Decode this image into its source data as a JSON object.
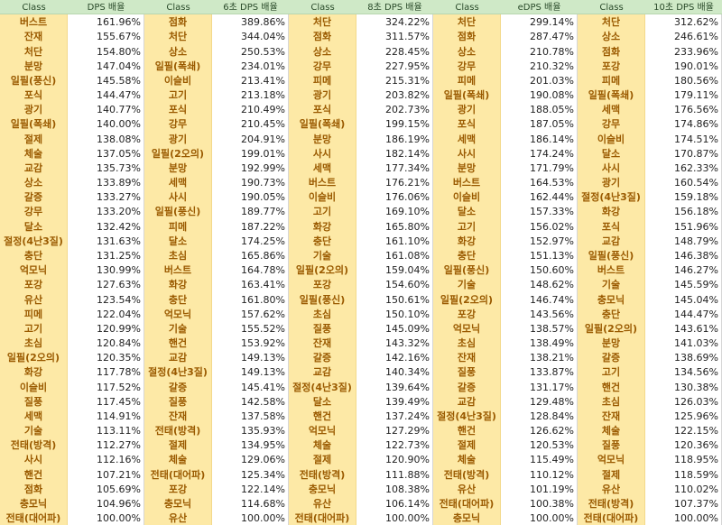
{
  "tables": [
    {
      "class_header": "Class",
      "value_header": "DPS 배율",
      "rows": [
        {
          "cls": "버스트",
          "val": "161.96%"
        },
        {
          "cls": "잔재",
          "val": "155.67%"
        },
        {
          "cls": "처단",
          "val": "154.80%"
        },
        {
          "cls": "분망",
          "val": "147.04%"
        },
        {
          "cls": "일필(풍신)",
          "val": "145.58%"
        },
        {
          "cls": "포식",
          "val": "144.47%"
        },
        {
          "cls": "광기",
          "val": "140.77%"
        },
        {
          "cls": "일필(폭쇄)",
          "val": "140.00%"
        },
        {
          "cls": "절제",
          "val": "138.08%"
        },
        {
          "cls": "체술",
          "val": "137.05%"
        },
        {
          "cls": "교감",
          "val": "135.73%"
        },
        {
          "cls": "상소",
          "val": "133.89%"
        },
        {
          "cls": "갈증",
          "val": "133.27%"
        },
        {
          "cls": "강무",
          "val": "133.20%"
        },
        {
          "cls": "달소",
          "val": "132.42%"
        },
        {
          "cls": "절정(4난3질)",
          "val": "131.63%"
        },
        {
          "cls": "충단",
          "val": "131.25%"
        },
        {
          "cls": "억모닉",
          "val": "130.99%"
        },
        {
          "cls": "포강",
          "val": "127.63%"
        },
        {
          "cls": "유산",
          "val": "123.54%"
        },
        {
          "cls": "피메",
          "val": "122.04%"
        },
        {
          "cls": "고기",
          "val": "120.99%"
        },
        {
          "cls": "초심",
          "val": "120.84%"
        },
        {
          "cls": "일필(2오의)",
          "val": "120.35%"
        },
        {
          "cls": "화강",
          "val": "117.78%"
        },
        {
          "cls": "이슬비",
          "val": "117.52%"
        },
        {
          "cls": "질풍",
          "val": "117.45%"
        },
        {
          "cls": "세맥",
          "val": "114.91%"
        },
        {
          "cls": "기술",
          "val": "113.11%"
        },
        {
          "cls": "전태(방격)",
          "val": "112.27%"
        },
        {
          "cls": "사시",
          "val": "112.16%"
        },
        {
          "cls": "핸건",
          "val": "107.21%"
        },
        {
          "cls": "점화",
          "val": "105.69%"
        },
        {
          "cls": "충모닉",
          "val": "104.96%"
        },
        {
          "cls": "전태(대어파)",
          "val": "100.00%"
        }
      ]
    },
    {
      "class_header": "Class",
      "value_header": "6초 DPS 배율",
      "rows": [
        {
          "cls": "점화",
          "val": "389.86%"
        },
        {
          "cls": "처단",
          "val": "344.04%"
        },
        {
          "cls": "상소",
          "val": "250.53%"
        },
        {
          "cls": "일필(폭쇄)",
          "val": "234.01%"
        },
        {
          "cls": "이슬비",
          "val": "213.41%"
        },
        {
          "cls": "고기",
          "val": "213.18%"
        },
        {
          "cls": "포식",
          "val": "210.49%"
        },
        {
          "cls": "강무",
          "val": "210.45%"
        },
        {
          "cls": "광기",
          "val": "204.91%"
        },
        {
          "cls": "일필(2오의)",
          "val": "199.01%"
        },
        {
          "cls": "분망",
          "val": "192.99%"
        },
        {
          "cls": "세맥",
          "val": "190.73%"
        },
        {
          "cls": "사시",
          "val": "190.05%"
        },
        {
          "cls": "일필(풍신)",
          "val": "189.77%"
        },
        {
          "cls": "피메",
          "val": "187.22%"
        },
        {
          "cls": "달소",
          "val": "174.25%"
        },
        {
          "cls": "초심",
          "val": "165.86%"
        },
        {
          "cls": "버스트",
          "val": "164.78%"
        },
        {
          "cls": "화강",
          "val": "163.41%"
        },
        {
          "cls": "충단",
          "val": "161.80%"
        },
        {
          "cls": "억모닉",
          "val": "157.62%"
        },
        {
          "cls": "기술",
          "val": "155.52%"
        },
        {
          "cls": "핸건",
          "val": "153.92%"
        },
        {
          "cls": "교감",
          "val": "149.13%"
        },
        {
          "cls": "절정(4난3질)",
          "val": "149.13%"
        },
        {
          "cls": "갈증",
          "val": "145.41%"
        },
        {
          "cls": "질풍",
          "val": "142.58%"
        },
        {
          "cls": "잔재",
          "val": "137.58%"
        },
        {
          "cls": "전태(방격)",
          "val": "135.93%"
        },
        {
          "cls": "절제",
          "val": "134.95%"
        },
        {
          "cls": "체술",
          "val": "129.06%"
        },
        {
          "cls": "전태(대어파)",
          "val": "125.34%"
        },
        {
          "cls": "포강",
          "val": "122.14%"
        },
        {
          "cls": "충모닉",
          "val": "114.68%"
        },
        {
          "cls": "유산",
          "val": "100.00%"
        }
      ]
    },
    {
      "class_header": "Class",
      "value_header": "8초 DPS 배율",
      "rows": [
        {
          "cls": "처단",
          "val": "324.22%"
        },
        {
          "cls": "점화",
          "val": "311.57%"
        },
        {
          "cls": "상소",
          "val": "228.45%"
        },
        {
          "cls": "강무",
          "val": "227.95%"
        },
        {
          "cls": "피메",
          "val": "215.31%"
        },
        {
          "cls": "광기",
          "val": "203.82%"
        },
        {
          "cls": "포식",
          "val": "202.73%"
        },
        {
          "cls": "일필(폭쇄)",
          "val": "199.15%"
        },
        {
          "cls": "분망",
          "val": "186.19%"
        },
        {
          "cls": "사시",
          "val": "182.14%"
        },
        {
          "cls": "세맥",
          "val": "177.34%"
        },
        {
          "cls": "버스트",
          "val": "176.21%"
        },
        {
          "cls": "이슬비",
          "val": "176.06%"
        },
        {
          "cls": "고기",
          "val": "169.10%"
        },
        {
          "cls": "화강",
          "val": "165.80%"
        },
        {
          "cls": "충단",
          "val": "161.10%"
        },
        {
          "cls": "기술",
          "val": "161.08%"
        },
        {
          "cls": "일필(2오의)",
          "val": "159.04%"
        },
        {
          "cls": "포강",
          "val": "154.60%"
        },
        {
          "cls": "일필(풍신)",
          "val": "150.61%"
        },
        {
          "cls": "초심",
          "val": "150.10%"
        },
        {
          "cls": "질풍",
          "val": "145.09%"
        },
        {
          "cls": "잔재",
          "val": "143.32%"
        },
        {
          "cls": "갈증",
          "val": "142.16%"
        },
        {
          "cls": "교감",
          "val": "140.34%"
        },
        {
          "cls": "절정(4난3질)",
          "val": "139.64%"
        },
        {
          "cls": "달소",
          "val": "139.49%"
        },
        {
          "cls": "핸건",
          "val": "137.24%"
        },
        {
          "cls": "억모닉",
          "val": "127.29%"
        },
        {
          "cls": "체술",
          "val": "122.73%"
        },
        {
          "cls": "절제",
          "val": "120.90%"
        },
        {
          "cls": "전태(방격)",
          "val": "111.88%"
        },
        {
          "cls": "충모닉",
          "val": "108.38%"
        },
        {
          "cls": "유산",
          "val": "106.14%"
        },
        {
          "cls": "전태(대어파)",
          "val": "100.00%"
        }
      ]
    },
    {
      "class_header": "Class",
      "value_header": "eDPS 배율",
      "rows": [
        {
          "cls": "처단",
          "val": "299.14%"
        },
        {
          "cls": "점화",
          "val": "287.47%"
        },
        {
          "cls": "상소",
          "val": "210.78%"
        },
        {
          "cls": "강무",
          "val": "210.32%"
        },
        {
          "cls": "피메",
          "val": "201.03%"
        },
        {
          "cls": "일필(폭쇄)",
          "val": "190.08%"
        },
        {
          "cls": "광기",
          "val": "188.05%"
        },
        {
          "cls": "포식",
          "val": "187.05%"
        },
        {
          "cls": "세맥",
          "val": "186.14%"
        },
        {
          "cls": "사시",
          "val": "174.24%"
        },
        {
          "cls": "분망",
          "val": "171.79%"
        },
        {
          "cls": "버스트",
          "val": "164.53%"
        },
        {
          "cls": "이슬비",
          "val": "162.44%"
        },
        {
          "cls": "달소",
          "val": "157.33%"
        },
        {
          "cls": "고기",
          "val": "156.02%"
        },
        {
          "cls": "화강",
          "val": "152.97%"
        },
        {
          "cls": "충단",
          "val": "151.13%"
        },
        {
          "cls": "일필(풍신)",
          "val": "150.60%"
        },
        {
          "cls": "기술",
          "val": "148.62%"
        },
        {
          "cls": "일필(2오의)",
          "val": "146.74%"
        },
        {
          "cls": "포강",
          "val": "143.56%"
        },
        {
          "cls": "억모닉",
          "val": "138.57%"
        },
        {
          "cls": "초심",
          "val": "138.49%"
        },
        {
          "cls": "잔재",
          "val": "138.21%"
        },
        {
          "cls": "질풍",
          "val": "133.87%"
        },
        {
          "cls": "갈증",
          "val": "131.17%"
        },
        {
          "cls": "교감",
          "val": "129.48%"
        },
        {
          "cls": "절정(4난3질)",
          "val": "128.84%"
        },
        {
          "cls": "핸건",
          "val": "126.62%"
        },
        {
          "cls": "절제",
          "val": "120.53%"
        },
        {
          "cls": "체술",
          "val": "115.49%"
        },
        {
          "cls": "전태(방격)",
          "val": "110.12%"
        },
        {
          "cls": "유산",
          "val": "101.19%"
        },
        {
          "cls": "전태(대어파)",
          "val": "100.38%"
        },
        {
          "cls": "충모닉",
          "val": "100.00%"
        }
      ]
    },
    {
      "class_header": "Class",
      "value_header": "10초 DPS 배율",
      "rows": [
        {
          "cls": "처단",
          "val": "312.62%"
        },
        {
          "cls": "상소",
          "val": "246.61%"
        },
        {
          "cls": "점화",
          "val": "233.96%"
        },
        {
          "cls": "포강",
          "val": "190.01%"
        },
        {
          "cls": "피메",
          "val": "180.56%"
        },
        {
          "cls": "일필(폭쇄)",
          "val": "179.11%"
        },
        {
          "cls": "세맥",
          "val": "176.56%"
        },
        {
          "cls": "강무",
          "val": "174.86%"
        },
        {
          "cls": "이슬비",
          "val": "174.51%"
        },
        {
          "cls": "달소",
          "val": "170.87%"
        },
        {
          "cls": "사시",
          "val": "162.33%"
        },
        {
          "cls": "광기",
          "val": "160.54%"
        },
        {
          "cls": "절정(4난3질)",
          "val": "159.18%"
        },
        {
          "cls": "화강",
          "val": "156.18%"
        },
        {
          "cls": "포식",
          "val": "151.96%"
        },
        {
          "cls": "교감",
          "val": "148.79%"
        },
        {
          "cls": "일필(풍신)",
          "val": "146.38%"
        },
        {
          "cls": "버스트",
          "val": "146.27%"
        },
        {
          "cls": "기술",
          "val": "145.59%"
        },
        {
          "cls": "충모닉",
          "val": "145.04%"
        },
        {
          "cls": "충단",
          "val": "144.47%"
        },
        {
          "cls": "일필(2오의)",
          "val": "143.61%"
        },
        {
          "cls": "분망",
          "val": "141.03%"
        },
        {
          "cls": "갈증",
          "val": "138.69%"
        },
        {
          "cls": "고기",
          "val": "134.56%"
        },
        {
          "cls": "핸건",
          "val": "130.38%"
        },
        {
          "cls": "초심",
          "val": "126.03%"
        },
        {
          "cls": "잔재",
          "val": "125.96%"
        },
        {
          "cls": "체술",
          "val": "122.15%"
        },
        {
          "cls": "질풍",
          "val": "120.36%"
        },
        {
          "cls": "억모닉",
          "val": "118.95%"
        },
        {
          "cls": "절제",
          "val": "118.59%"
        },
        {
          "cls": "유산",
          "val": "110.02%"
        },
        {
          "cls": "전태(방격)",
          "val": "107.37%"
        },
        {
          "cls": "전태(대어파)",
          "val": "100.00%"
        }
      ]
    }
  ]
}
